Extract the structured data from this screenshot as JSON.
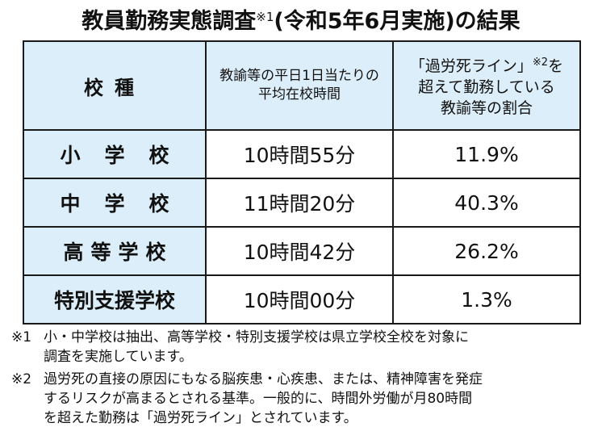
{
  "title": {
    "main": "教員勤務実態調査",
    "ref": "※1",
    "suffix": "(令和5年6月実施)の結果"
  },
  "table": {
    "headers": {
      "school_type": "校種",
      "avg_hours_line1": "教諭等の平日1日当たりの",
      "avg_hours_line2": "平均在校時間",
      "overwork_line1_a": "「過労死ライン」",
      "overwork_line1_ref": "※2",
      "overwork_line1_b": "を",
      "overwork_line2": "超えて勤務している",
      "overwork_line3": "教諭等の割合"
    },
    "rows": [
      {
        "school": "小学校",
        "time": "10時間55分",
        "pct": "11.9%"
      },
      {
        "school": "中学校",
        "time": "11時間20分",
        "pct": "40.3%"
      },
      {
        "school": "高等学校",
        "time": "10時間42分",
        "pct": "26.2%"
      },
      {
        "school": "特別支援学校",
        "time": "10時間00分",
        "pct": "1.3%"
      }
    ]
  },
  "notes": [
    {
      "mark": "※1",
      "line1": "小・中学校は抽出、高等学校・特別支援学校は県立学校全校を対象に",
      "line2": "調査を実施しています。",
      "line3": ""
    },
    {
      "mark": "※2",
      "line1": "過労死の直接の原因にもなる脳疾患・心疾患、または、精神障害を発症",
      "line2": "するリスクが高まるとされる基準。一般的に、時間外労働が月80時間",
      "line3": "を超えた勤務は「過労死ライン」とされています。"
    }
  ]
}
